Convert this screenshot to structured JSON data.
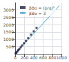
{
  "chart_data": {
    "type": "scatter",
    "series": [
      {
        "name": "βBo = (p/q)²",
        "type": "scatter",
        "color": "#222244",
        "marker": "square",
        "x": [
          10,
          20,
          30,
          50,
          70,
          90,
          120,
          150,
          190,
          230,
          280,
          340,
          400,
          460
        ],
        "values": [
          30,
          70,
          110,
          180,
          260,
          340,
          450,
          570,
          720,
          880,
          1080,
          1310,
          1540,
          1770
        ]
      },
      {
        "name": "βBo = 3",
        "type": "line",
        "color": "#44aadd",
        "line_style": "solid",
        "x": [
          0,
          950
        ],
        "values": [
          0,
          3300
        ]
      }
    ],
    "xlim": [
      0,
      1000
    ],
    "xticks": [
      0,
      200,
      400,
      600,
      800,
      1000
    ],
    "ylim": [
      0,
      3500
    ],
    "yticks": [
      500,
      1000,
      1500,
      2000,
      2500,
      3000
    ],
    "grid": true,
    "legend": "upper left"
  }
}
